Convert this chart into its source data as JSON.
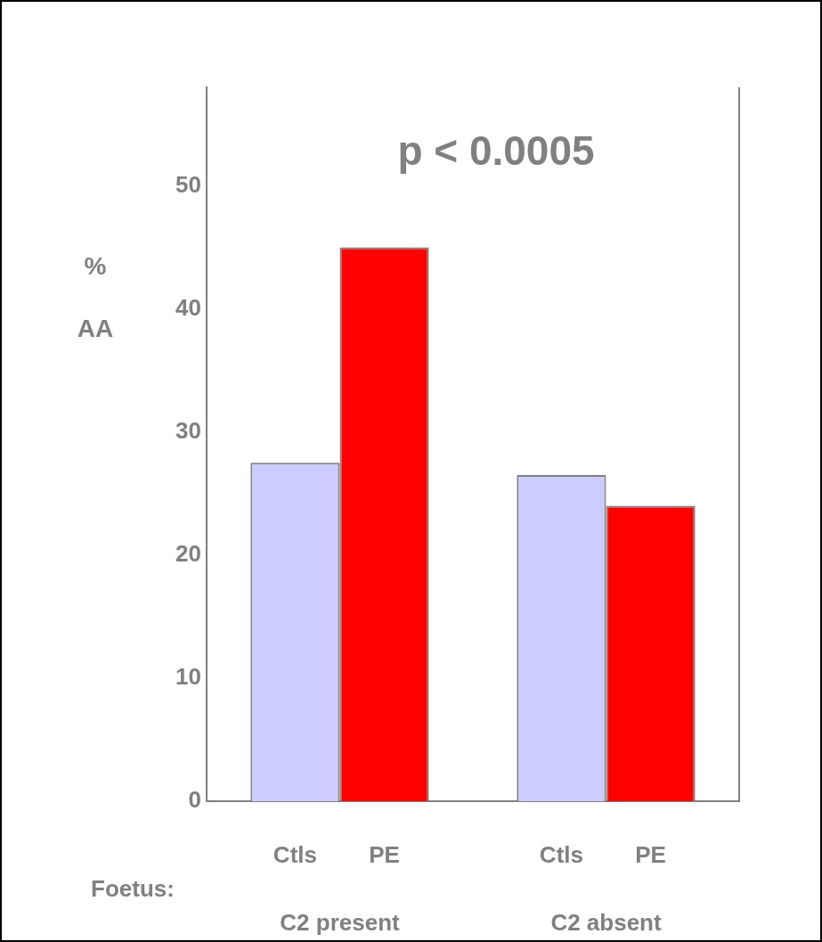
{
  "chart_data": {
    "type": "bar",
    "title": "p < 0.0005",
    "ylabel": "% AA",
    "categories": [
      "C2 present",
      "C2 absent"
    ],
    "series": [
      {
        "name": "Ctls",
        "color": "#ccccff",
        "values": [
          27.5,
          26.5
        ]
      },
      {
        "name": "PE",
        "color": "#ff0000",
        "values": [
          45,
          24
        ]
      }
    ],
    "ylim": [
      0,
      58
    ],
    "yticks": [
      0,
      10,
      20,
      30,
      40,
      50
    ],
    "grid": false,
    "legend": false,
    "annotations": [
      "Foetus:"
    ]
  }
}
